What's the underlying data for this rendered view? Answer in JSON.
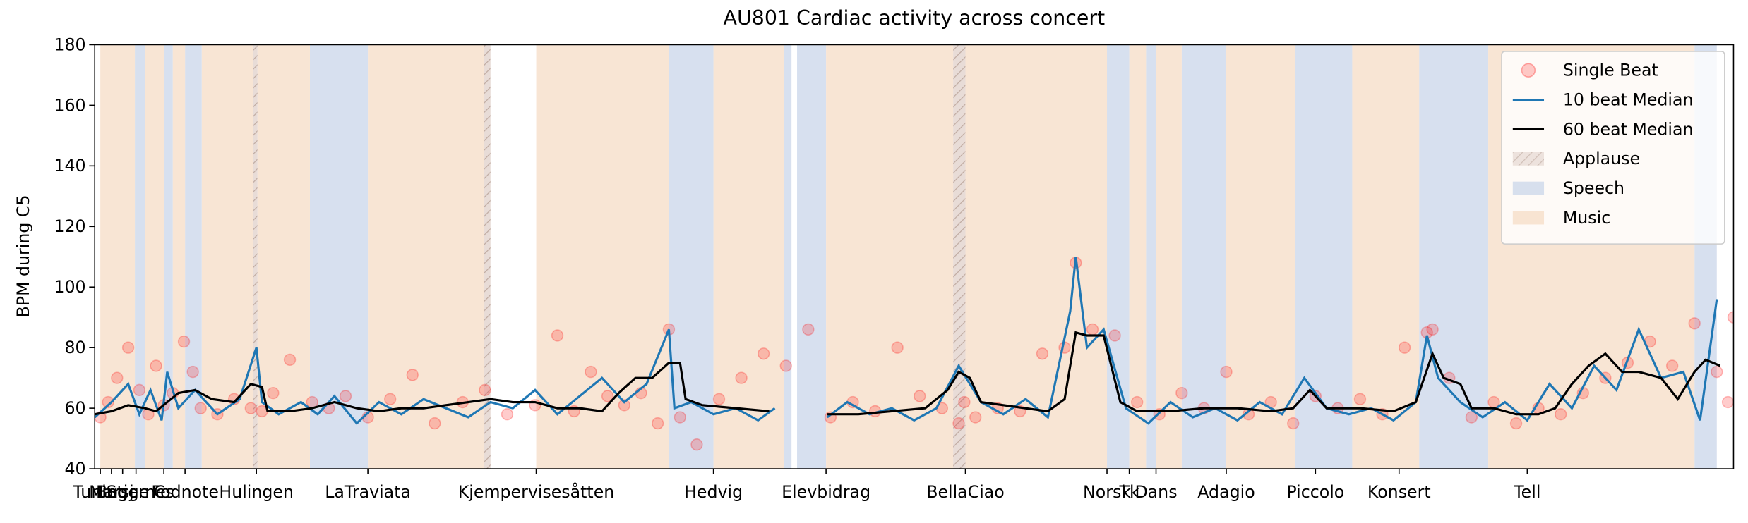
{
  "chart_data": {
    "type": "line",
    "title": "AU801 Cardiac activity across concert",
    "ylabel": "BPM during C5",
    "xlim": [
      0,
      1470
    ],
    "ylim": [
      40,
      180
    ],
    "yticks": [
      40,
      60,
      80,
      100,
      120,
      140,
      160,
      180
    ],
    "xticks": [
      {
        "value": 5,
        "label": "Tuning"
      },
      {
        "value": 15,
        "label": "Marsj"
      },
      {
        "value": 25,
        "label": "Bogge"
      },
      {
        "value": 37,
        "label": "Stjerne"
      },
      {
        "value": 62,
        "label": "Cs"
      },
      {
        "value": 81,
        "label": "Fodnote"
      },
      {
        "value": 145,
        "label": "Hulingen"
      },
      {
        "value": 245,
        "label": "LaTraviata"
      },
      {
        "value": 396,
        "label": "Kjempervisesåtten"
      },
      {
        "value": 555,
        "label": "Hedvig"
      },
      {
        "value": 656,
        "label": "Elevbidrag"
      },
      {
        "value": 781,
        "label": "BellaCiao"
      },
      {
        "value": 908,
        "label": "Norsk"
      },
      {
        "value": 928,
        "label": "Tk"
      },
      {
        "value": 952,
        "label": "Dans"
      },
      {
        "value": 1015,
        "label": "Adagio"
      },
      {
        "value": 1095,
        "label": "Piccolo"
      },
      {
        "value": 1170,
        "label": "Konsert"
      },
      {
        "value": 1285,
        "label": "Tell"
      }
    ],
    "legend": "upper right",
    "regions": [
      {
        "name": "Applause",
        "color": "#d8c4bc",
        "hatch": true,
        "spans": [
          [
            142,
            146
          ],
          [
            349,
            355
          ],
          [
            770,
            781
          ]
        ]
      },
      {
        "name": "Speech",
        "color": "#c9d6ea",
        "hatch": false,
        "spans": [
          [
            36,
            45
          ],
          [
            62,
            70
          ],
          [
            81,
            96
          ],
          [
            193,
            245
          ],
          [
            515,
            555
          ],
          [
            618,
            625
          ],
          [
            630,
            656
          ],
          [
            908,
            928
          ],
          [
            943,
            952
          ],
          [
            975,
            1015
          ],
          [
            1077,
            1128
          ],
          [
            1188,
            1250
          ],
          [
            1435,
            1455
          ]
        ]
      },
      {
        "name": "Music",
        "color": "#f6dcc6",
        "hatch": false,
        "spans": [
          [
            5,
            36
          ],
          [
            45,
            62
          ],
          [
            70,
            81
          ],
          [
            96,
            142
          ],
          [
            146,
            193
          ],
          [
            245,
            349
          ],
          [
            396,
            515
          ],
          [
            555,
            618
          ],
          [
            656,
            770
          ],
          [
            781,
            908
          ],
          [
            928,
            943
          ],
          [
            952,
            975
          ],
          [
            1015,
            1077
          ],
          [
            1128,
            1188
          ],
          [
            1250,
            1435
          ]
        ]
      }
    ],
    "series": [
      {
        "name": "Single Beat",
        "type": "scatter",
        "color": "#ff0000",
        "x": [
          5,
          12,
          20,
          30,
          40,
          48,
          55,
          62,
          70,
          80,
          88,
          95,
          110,
          125,
          140,
          150,
          160,
          175,
          195,
          210,
          225,
          245,
          265,
          285,
          305,
          330,
          350,
          370,
          395,
          415,
          430,
          445,
          460,
          475,
          490,
          505,
          515,
          525,
          540,
          560,
          580,
          600,
          620,
          640,
          660,
          680,
          700,
          720,
          740,
          760,
          775,
          780,
          790,
          810,
          830,
          850,
          870,
          880,
          895,
          915,
          935,
          955,
          975,
          995,
          1015,
          1035,
          1055,
          1075,
          1095,
          1115,
          1135,
          1155,
          1175,
          1195,
          1200,
          1215,
          1235,
          1255,
          1275,
          1295,
          1315,
          1335,
          1355,
          1375,
          1395,
          1415,
          1435,
          1455,
          1465,
          1470
        ],
        "values": [
          57,
          62,
          70,
          80,
          66,
          58,
          74,
          61,
          65,
          82,
          72,
          60,
          58,
          63,
          60,
          59,
          65,
          76,
          62,
          60,
          64,
          57,
          63,
          71,
          55,
          62,
          66,
          58,
          61,
          84,
          59,
          72,
          64,
          61,
          65,
          55,
          86,
          57,
          48,
          63,
          70,
          78,
          74,
          86,
          57,
          62,
          59,
          80,
          64,
          60,
          55,
          62,
          57,
          60,
          59,
          78,
          80,
          108,
          86,
          84,
          62,
          58,
          65,
          60,
          72,
          58,
          62,
          55,
          64,
          60,
          63,
          58,
          80,
          85,
          86,
          70,
          57,
          62,
          55,
          60,
          58,
          65,
          70,
          75,
          82,
          74,
          88,
          72,
          62,
          90
        ]
      },
      {
        "name": "10 beat Median",
        "type": "line",
        "color": "#1f77b4",
        "x": [
          0,
          15,
          30,
          40,
          50,
          60,
          65,
          75,
          90,
          110,
          130,
          145,
          150,
          165,
          185,
          200,
          215,
          235,
          255,
          275,
          295,
          315,
          335,
          355,
          375,
          395,
          415,
          435,
          455,
          475,
          495,
          515,
          520,
          535,
          555,
          575,
          595,
          610,
          630,
          657,
          675,
          695,
          715,
          735,
          755,
          775,
          795,
          815,
          835,
          855,
          875,
          880,
          890,
          905,
          925,
          945,
          965,
          985,
          1005,
          1025,
          1045,
          1065,
          1085,
          1105,
          1125,
          1145,
          1165,
          1185,
          1195,
          1205,
          1225,
          1245,
          1265,
          1285,
          1305,
          1325,
          1345,
          1365,
          1385,
          1405,
          1425,
          1440,
          1455
        ],
        "values": [
          57,
          62,
          68,
          58,
          66,
          56,
          72,
          60,
          66,
          58,
          63,
          80,
          62,
          58,
          62,
          58,
          64,
          55,
          62,
          58,
          63,
          60,
          57,
          62,
          60,
          66,
          58,
          64,
          70,
          62,
          68,
          86,
          60,
          62,
          58,
          60,
          56,
          60,
          null,
          57,
          62,
          58,
          60,
          56,
          60,
          74,
          62,
          58,
          63,
          57,
          92,
          110,
          80,
          86,
          60,
          55,
          62,
          57,
          60,
          56,
          62,
          58,
          70,
          60,
          58,
          60,
          56,
          62,
          84,
          70,
          62,
          57,
          62,
          56,
          68,
          60,
          74,
          66,
          86,
          70,
          72,
          56,
          96
        ]
      },
      {
        "name": "60 beat Median",
        "type": "line",
        "color": "#000000",
        "x": [
          0,
          15,
          30,
          45,
          55,
          65,
          75,
          90,
          105,
          125,
          140,
          150,
          155,
          175,
          195,
          215,
          235,
          255,
          275,
          295,
          315,
          335,
          355,
          375,
          395,
          415,
          435,
          455,
          470,
          485,
          500,
          515,
          525,
          530,
          545,
          575,
          605,
          630,
          657,
          685,
          715,
          745,
          765,
          775,
          785,
          795,
          815,
          835,
          855,
          870,
          880,
          890,
          905,
          920,
          935,
          965,
          995,
          1025,
          1055,
          1075,
          1090,
          1105,
          1135,
          1165,
          1185,
          1200,
          1210,
          1225,
          1235,
          1255,
          1275,
          1295,
          1310,
          1325,
          1340,
          1355,
          1370,
          1385,
          1405,
          1420,
          1435,
          1445,
          1458
        ],
        "values": [
          58,
          59,
          61,
          60,
          59,
          62,
          65,
          66,
          63,
          62,
          68,
          67,
          59,
          59,
          60,
          62,
          60,
          59,
          60,
          60,
          61,
          62,
          63,
          62,
          62,
          60,
          60,
          59,
          65,
          70,
          70,
          75,
          75,
          63,
          61,
          60,
          59,
          null,
          58,
          58,
          59,
          60,
          66,
          72,
          70,
          62,
          61,
          60,
          59,
          63,
          85,
          84,
          84,
          62,
          59,
          59,
          60,
          60,
          59,
          60,
          66,
          60,
          60,
          59,
          62,
          78,
          70,
          68,
          60,
          60,
          58,
          58,
          60,
          68,
          74,
          78,
          72,
          72,
          70,
          63,
          72,
          76,
          74
        ]
      }
    ]
  }
}
